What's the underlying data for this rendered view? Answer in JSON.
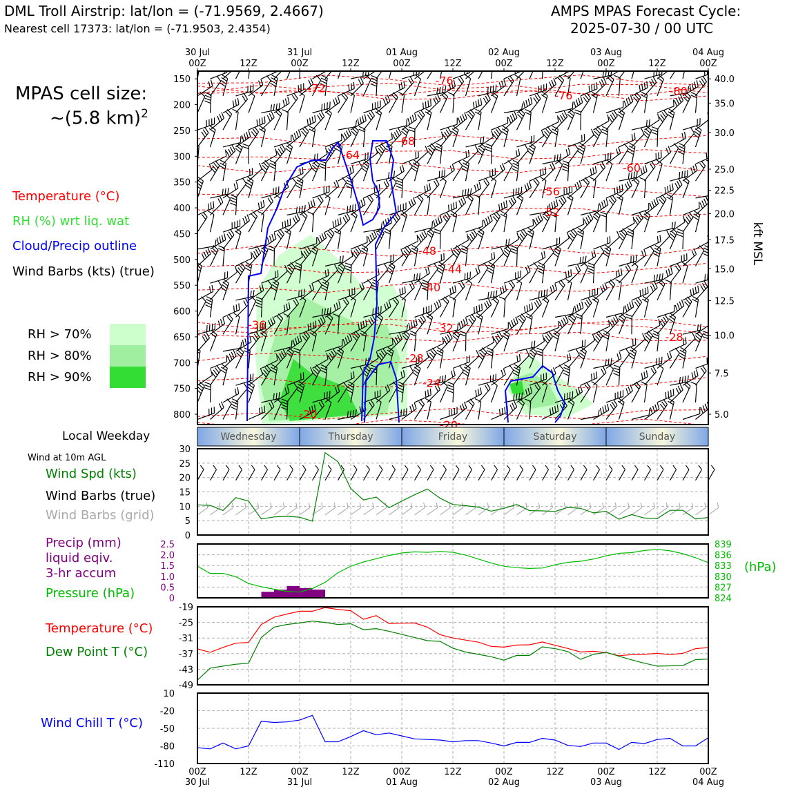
{
  "header": {
    "title": "DML Troll Airstrip: lat/lon = (-71.9569, 2.4667)",
    "subtitle": "Nearest cell 17373: lat/lon = (-71.9503, 2.4354)",
    "cycle_title": "AMPS MPAS Forecast Cycle:",
    "cycle_time": "2025-07-30 / 00 UTC"
  },
  "cell_size": {
    "label": "MPAS cell size:",
    "value": "~(5.8 km)",
    "exponent": "2"
  },
  "colors": {
    "temperature": "#ff0000",
    "rh_legend_text": "#33dd33",
    "cloud": "#0000ff",
    "rh70": "#ccffcc",
    "rh80": "#a0eea0",
    "rh90": "#33dd33",
    "wind_speed": "#008000",
    "grid_barbs": "#aaaaaa",
    "precip": "#800080",
    "pressure": "#00bb00",
    "dewpoint": "#008000",
    "wind_chill": "#0000ff"
  },
  "legend": {
    "temperature": "Temperature (°C)",
    "rh": "RH (%) wrt liq. wat",
    "cloud": "Cloud/Precip outline",
    "barbs": "Wind Barbs (kts) (true)",
    "rh70": "RH > 70%",
    "rh80": "RH > 80%",
    "rh90": "RH > 90%"
  },
  "time_axis": {
    "labels": [
      {
        "hour": 0,
        "top": "00Z",
        "date": "30 Jul"
      },
      {
        "hour": 12,
        "top": "12Z",
        "date": ""
      },
      {
        "hour": 24,
        "top": "00Z",
        "date": "31 Jul"
      },
      {
        "hour": 36,
        "top": "12Z",
        "date": ""
      },
      {
        "hour": 48,
        "top": "00Z",
        "date": "01 Aug"
      },
      {
        "hour": 60,
        "top": "12Z",
        "date": ""
      },
      {
        "hour": 72,
        "top": "00Z",
        "date": "02 Aug"
      },
      {
        "hour": 84,
        "top": "12Z",
        "date": ""
      },
      {
        "hour": 96,
        "top": "00Z",
        "date": "03 Aug"
      },
      {
        "hour": 108,
        "top": "12Z",
        "date": ""
      },
      {
        "hour": 120,
        "top": "00Z",
        "date": "04 Aug"
      }
    ]
  },
  "weekday": {
    "label": "Local Weekday",
    "days": [
      "Wednesday",
      "Thursday",
      "Friday",
      "Saturday",
      "Sunday"
    ]
  },
  "chart_data": [
    {
      "type": "contour",
      "name": "cross-section",
      "y_left_ticks": [
        150,
        200,
        250,
        300,
        350,
        400,
        450,
        500,
        550,
        600,
        650,
        700,
        750,
        800
      ],
      "y_right_ticks": [
        {
          "p": 150,
          "label": "40.0"
        },
        {
          "p": 197,
          "label": "35.0"
        },
        {
          "p": 254,
          "label": "30.0"
        },
        {
          "p": 325,
          "label": "25.0"
        },
        {
          "p": 366,
          "label": "22.5"
        },
        {
          "p": 411,
          "label": "20.0"
        },
        {
          "p": 462,
          "label": "17.5"
        },
        {
          "p": 518,
          "label": "15.0"
        },
        {
          "p": 580,
          "label": "12.5"
        },
        {
          "p": 647,
          "label": "10.0"
        },
        {
          "p": 720,
          "label": "7.5"
        },
        {
          "p": 800,
          "label": "5.0"
        }
      ],
      "y_right_label": "kft MSL",
      "ylim": [
        135,
        820
      ],
      "xlim": [
        0,
        120
      ],
      "temperature_labels": [
        {
          "h": 28,
          "p": 168,
          "v": "-72"
        },
        {
          "h": 58,
          "p": 153,
          "v": "-76"
        },
        {
          "h": 86,
          "p": 182,
          "v": "-76"
        },
        {
          "h": 113,
          "p": 173,
          "v": "-80"
        },
        {
          "h": 49,
          "p": 270,
          "v": "-68"
        },
        {
          "h": 36,
          "p": 297,
          "v": "-64"
        },
        {
          "h": 102,
          "p": 322,
          "v": "-60"
        },
        {
          "h": 83,
          "p": 368,
          "v": "-56"
        },
        {
          "h": 83,
          "p": 408,
          "v": "-52"
        },
        {
          "h": 54,
          "p": 483,
          "v": "-48"
        },
        {
          "h": 60,
          "p": 518,
          "v": "-44"
        },
        {
          "h": 55,
          "p": 554,
          "v": "-40"
        },
        {
          "h": 14,
          "p": 626,
          "v": "-36"
        },
        {
          "h": 58,
          "p": 633,
          "v": "-32"
        },
        {
          "h": 112,
          "p": 650,
          "v": "-28"
        },
        {
          "h": 51,
          "p": 691,
          "v": "-28"
        },
        {
          "h": 55,
          "p": 739,
          "v": "-24"
        },
        {
          "h": 26,
          "p": 799,
          "v": "-20"
        },
        {
          "h": 59,
          "p": 820,
          "v": "-20"
        }
      ]
    },
    {
      "type": "line",
      "name": "wind-speed",
      "title": "Wind at 10m AGL",
      "legend": [
        "Wind Spd (kts)",
        "Wind Barbs (true)",
        "Wind Barbs (grid)"
      ],
      "ylim": [
        0,
        30
      ],
      "yticks": [
        0,
        5,
        10,
        15,
        20,
        25,
        30
      ],
      "x": [
        0,
        3,
        6,
        9,
        12,
        15,
        18,
        21,
        24,
        27,
        30,
        33,
        36,
        39,
        42,
        45,
        48,
        51,
        54,
        57,
        60,
        63,
        66,
        69,
        72,
        75,
        78,
        81,
        84,
        87,
        90,
        93,
        96,
        99,
        102,
        105,
        108,
        111,
        114,
        117,
        120
      ],
      "values": [
        10.5,
        10.3,
        8.5,
        13,
        11.8,
        5.6,
        6.3,
        6.5,
        6.2,
        4.8,
        28.6,
        25.5,
        16.2,
        12.2,
        13.2,
        9.5,
        11.8,
        14,
        16,
        12.8,
        10.6,
        10.2,
        9.7,
        8.3,
        9.3,
        10.6,
        8.5,
        8.4,
        8.2,
        9.6,
        9.3,
        7.7,
        8.2,
        5.5,
        7.1,
        5.9,
        5.7,
        8.6,
        8.6,
        5.6,
        6.1
      ]
    },
    {
      "type": "bar+line",
      "name": "precip-pressure",
      "legend": [
        "Precip (mm)",
        "liquid eqiv.",
        "3-hr accum",
        "Pressure (hPa)"
      ],
      "precip_ylim": [
        0,
        2.5
      ],
      "precip_yticks": [
        0,
        0.5,
        1.0,
        1.5,
        2.0,
        2.5
      ],
      "precip_bars": [
        {
          "x0": 15,
          "x1": 18,
          "v": 0.28
        },
        {
          "x0": 18,
          "x1": 21,
          "v": 0.38
        },
        {
          "x0": 21,
          "x1": 24,
          "v": 0.55
        },
        {
          "x0": 24,
          "x1": 27,
          "v": 0.45
        },
        {
          "x0": 27,
          "x1": 30,
          "v": 0.38
        }
      ],
      "pressure_ylabel": "(hPa)",
      "pressure_ylim": [
        824,
        839
      ],
      "pressure_yticks": [
        824,
        827,
        830,
        833,
        836,
        839
      ],
      "x": [
        0,
        3,
        6,
        9,
        12,
        15,
        18,
        21,
        24,
        27,
        30,
        33,
        36,
        39,
        42,
        45,
        48,
        51,
        54,
        57,
        60,
        63,
        66,
        69,
        72,
        75,
        78,
        81,
        84,
        87,
        90,
        93,
        96,
        99,
        102,
        105,
        108,
        111,
        114,
        117,
        120
      ],
      "pressure": [
        832.8,
        830.8,
        830.8,
        829.9,
        828.0,
        827.1,
        826.4,
        825.8,
        825.6,
        826.6,
        828.3,
        831.0,
        832.8,
        834.0,
        834.9,
        835.8,
        836.5,
        836.8,
        836.7,
        836.9,
        836.7,
        835.9,
        834.8,
        833.7,
        832.8,
        832.4,
        832.2,
        832.3,
        833.2,
        833.9,
        834.2,
        834.8,
        835.7,
        836.4,
        836.6,
        837.2,
        837.5,
        837.1,
        836.3,
        835.2,
        833.8
      ]
    },
    {
      "type": "line",
      "name": "temperature-dewpoint",
      "legend": [
        "Temperature (°C)",
        "Dew Point T (°C)"
      ],
      "ylim": [
        -49,
        -19
      ],
      "yticks": [
        -49,
        -43,
        -37,
        -31,
        -25,
        -19
      ],
      "x": [
        0,
        3,
        6,
        9,
        12,
        15,
        18,
        21,
        24,
        27,
        30,
        33,
        36,
        39,
        42,
        45,
        48,
        51,
        54,
        57,
        60,
        63,
        66,
        69,
        72,
        75,
        78,
        81,
        84,
        87,
        90,
        93,
        96,
        99,
        102,
        105,
        108,
        111,
        114,
        117,
        120
      ],
      "temperature": [
        -35.2,
        -36.5,
        -34.6,
        -33.0,
        -32.7,
        -25.8,
        -23.0,
        -21.8,
        -20.7,
        -20.7,
        -19.3,
        -20.0,
        -20.5,
        -23.8,
        -22.4,
        -25.4,
        -25.3,
        -25.2,
        -26.8,
        -29.7,
        -31.0,
        -31.8,
        -32.6,
        -34.2,
        -34.5,
        -33.7,
        -33.6,
        -32.5,
        -33.8,
        -35.0,
        -36.4,
        -36.1,
        -36.6,
        -37.8,
        -37.4,
        -37.3,
        -36.9,
        -37.4,
        -36.9,
        -35.1,
        -34.7
      ],
      "dewpoint": [
        -47.2,
        -42.6,
        -41.8,
        -41.1,
        -40.7,
        -30.8,
        -26.8,
        -25.8,
        -25.2,
        -24.5,
        -25.0,
        -25.8,
        -25.5,
        -27.8,
        -27.4,
        -28.4,
        -29.6,
        -30.8,
        -32.0,
        -32.3,
        -34.9,
        -36.4,
        -37.3,
        -38.2,
        -39.5,
        -37.7,
        -37.7,
        -34.4,
        -35.1,
        -36.2,
        -39.2,
        -37.3,
        -36.5,
        -38.0,
        -39.4,
        -40.7,
        -41.8,
        -41.7,
        -41.6,
        -39.3,
        -39.1
      ]
    },
    {
      "type": "line",
      "name": "wind-chill",
      "legend": [
        "Wind Chill T (°C)"
      ],
      "ylim": [
        -110,
        10
      ],
      "yticks": [
        -110,
        -80,
        -50,
        -20,
        10
      ],
      "x": [
        0,
        3,
        6,
        9,
        12,
        15,
        18,
        21,
        24,
        27,
        30,
        33,
        36,
        39,
        42,
        45,
        48,
        51,
        54,
        57,
        60,
        63,
        66,
        69,
        72,
        75,
        78,
        81,
        84,
        87,
        90,
        93,
        96,
        99,
        102,
        105,
        108,
        111,
        114,
        117,
        120
      ],
      "values": [
        -83,
        -85,
        -75,
        -85,
        -80,
        -38,
        -40,
        -39,
        -36,
        -28,
        -73,
        -73,
        -64,
        -54,
        -61,
        -58,
        -63,
        -68,
        -69,
        -70,
        -73,
        -71,
        -71,
        -75,
        -80,
        -74,
        -74,
        -67,
        -70,
        -79,
        -81,
        -75,
        -75,
        -86,
        -74,
        -76,
        -69,
        -67,
        -80,
        -80,
        -66
      ]
    }
  ],
  "bottom_axis_labels": [
    {
      "hour": 0,
      "top": "00Z",
      "date": "30 Jul"
    },
    {
      "hour": 12,
      "top": "12Z",
      "date": ""
    },
    {
      "hour": 24,
      "top": "00Z",
      "date": "31 Jul"
    },
    {
      "hour": 36,
      "top": "12Z",
      "date": ""
    },
    {
      "hour": 48,
      "top": "00Z",
      "date": "01 Aug"
    },
    {
      "hour": 60,
      "top": "12Z",
      "date": ""
    },
    {
      "hour": 72,
      "top": "00Z",
      "date": "02 Aug"
    },
    {
      "hour": 84,
      "top": "12Z",
      "date": ""
    },
    {
      "hour": 96,
      "top": "00Z",
      "date": "03 Aug"
    },
    {
      "hour": 108,
      "top": "12Z",
      "date": ""
    },
    {
      "hour": 120,
      "top": "00Z",
      "date": "04 Aug"
    }
  ]
}
